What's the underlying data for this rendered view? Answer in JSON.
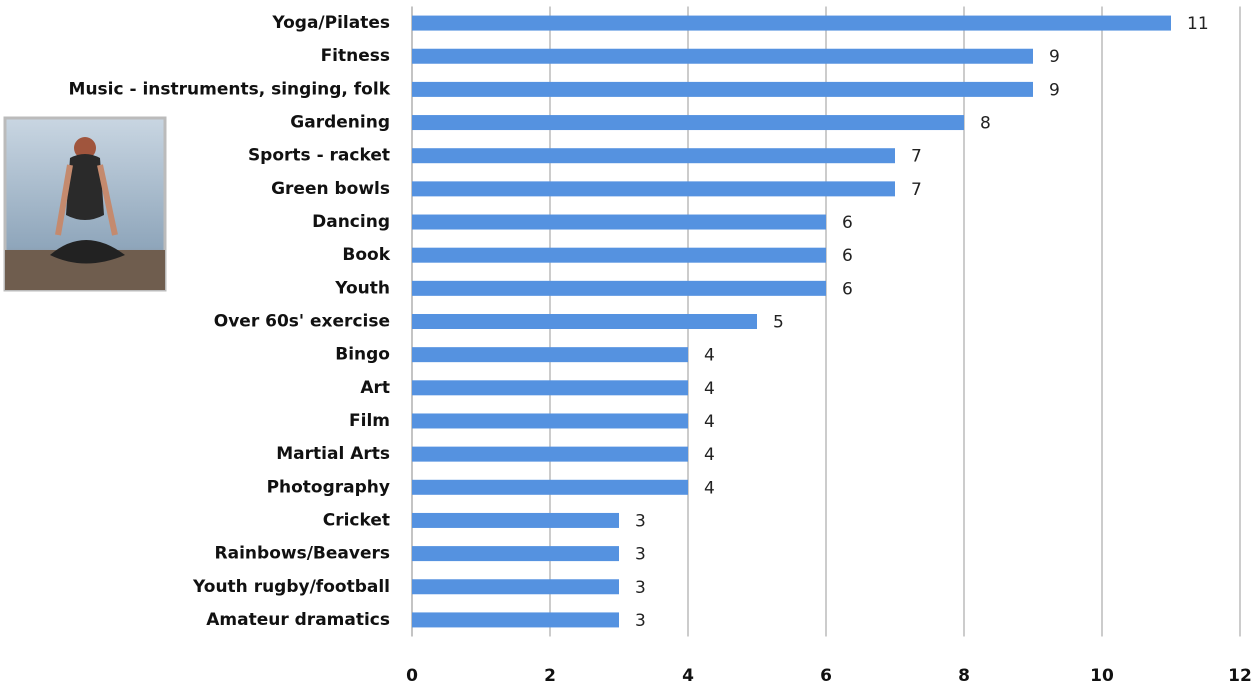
{
  "chart_data": {
    "type": "hbar",
    "categories": [
      "Yoga/Pilates",
      "Fitness",
      "Music - instruments, singing, folk",
      "Gardening",
      "Sports - racket",
      "Green bowls",
      "Dancing",
      "Book",
      "Youth",
      "Over 60s' exercise",
      "Bingo",
      "Art",
      "Film",
      "Martial Arts",
      "Photography",
      "Cricket",
      "Rainbows/Beavers",
      "Youth rugby/football",
      "Amateur dramatics"
    ],
    "values": [
      11,
      9,
      9,
      8,
      7,
      7,
      6,
      6,
      6,
      5,
      4,
      4,
      4,
      4,
      4,
      3,
      3,
      3,
      3
    ],
    "color": "#5592e0",
    "xlim": [
      0,
      12
    ],
    "xticks": [
      0,
      2,
      4,
      6,
      8,
      10,
      12
    ],
    "grid": true
  }
}
